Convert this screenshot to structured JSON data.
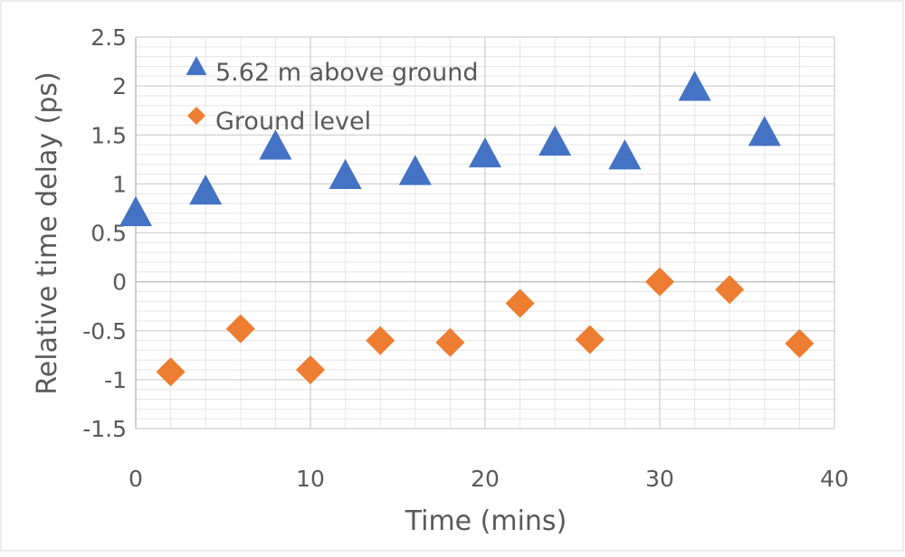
{
  "chart_data": {
    "type": "scatter",
    "xlabel": "Time (mins)",
    "ylabel": "Relative time delay (ps)",
    "xlim": [
      0,
      40
    ],
    "ylim": [
      -1.5,
      2.5
    ],
    "x_ticks": [
      0,
      10,
      20,
      30,
      40
    ],
    "y_ticks": [
      2.5,
      2,
      1.5,
      1,
      0.5,
      0,
      -0.5,
      -1,
      -1.5
    ],
    "x_tick_labels": [
      "0",
      "10",
      "20",
      "30",
      "40"
    ],
    "y_tick_labels": [
      "2.5",
      "2",
      "1.5",
      "1",
      "0.5",
      "0",
      "-0.5",
      "-1",
      "-1.5"
    ],
    "grid": true,
    "legend_position": "top-left",
    "series": [
      {
        "name": "5.62 m above ground",
        "marker": "triangle",
        "color": "#4472C4",
        "x": [
          0,
          4,
          8,
          12,
          16,
          20,
          24,
          28,
          32,
          36
        ],
        "y": [
          0.7,
          0.92,
          1.38,
          1.08,
          1.12,
          1.3,
          1.42,
          1.28,
          1.98,
          1.52
        ]
      },
      {
        "name": "Ground level",
        "marker": "diamond",
        "color": "#ED7D31",
        "x": [
          2,
          6,
          10,
          14,
          18,
          22,
          26,
          30,
          34,
          38
        ],
        "y": [
          -0.92,
          -0.48,
          -0.9,
          -0.6,
          -0.62,
          -0.22,
          -0.59,
          0.0,
          -0.08,
          -0.63
        ]
      }
    ]
  }
}
